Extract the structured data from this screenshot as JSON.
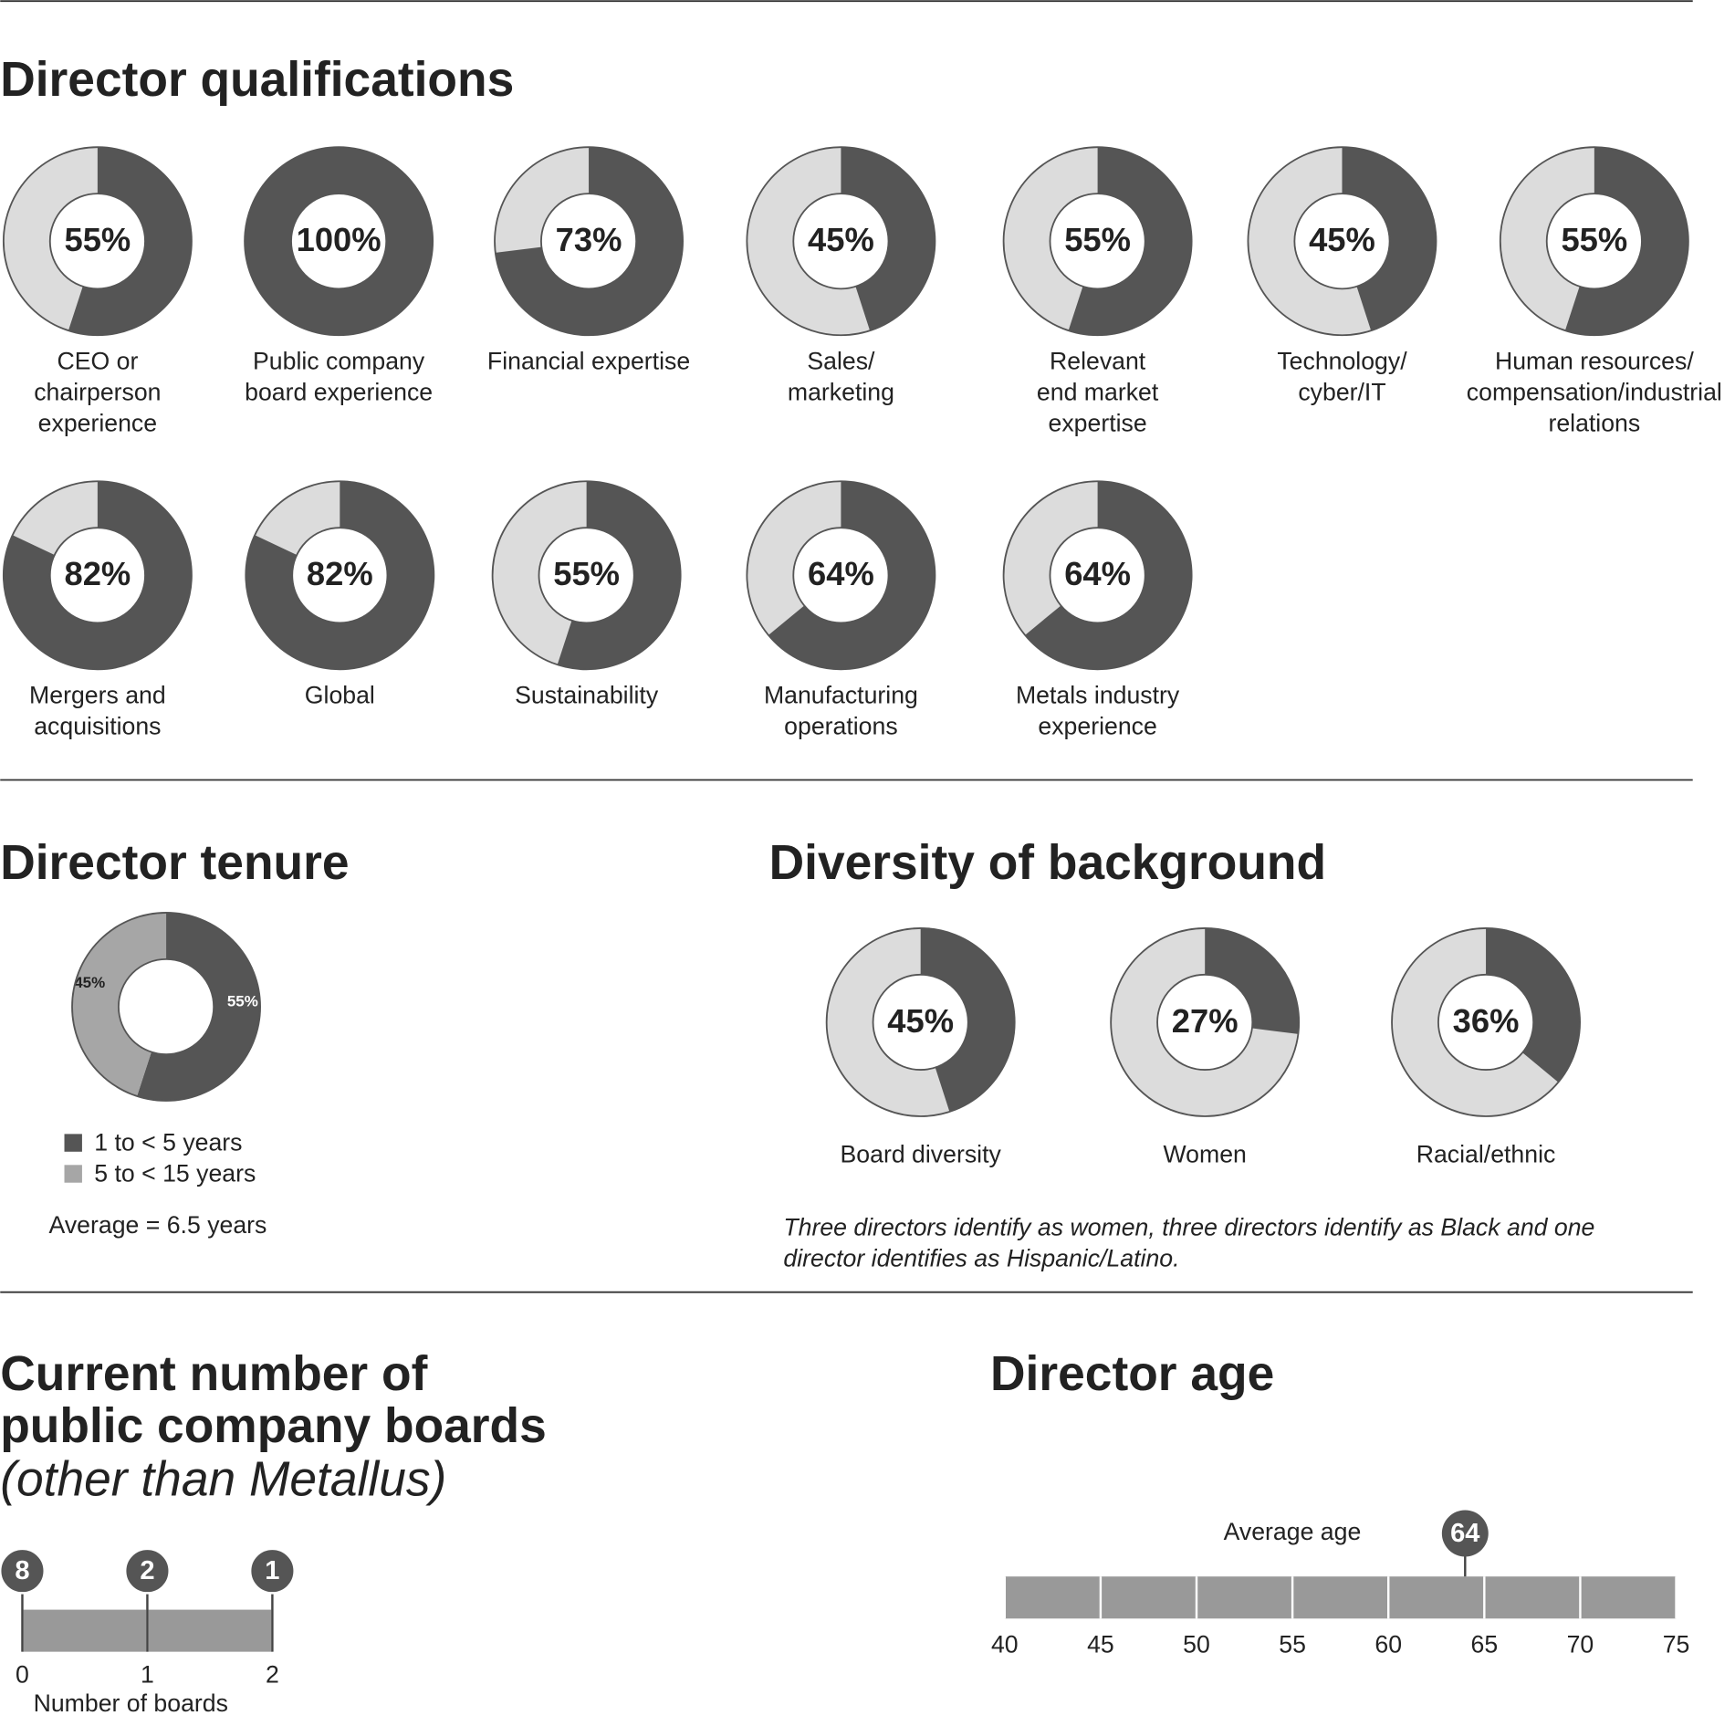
{
  "chart_data": [
    {
      "type": "donut-grid",
      "title": "Director qualifications",
      "categories": [
        [
          "CEO or",
          "chairperson",
          "experience"
        ],
        [
          "Public company",
          "board experience"
        ],
        [
          "Financial expertise"
        ],
        [
          "Sales/",
          "marketing"
        ],
        [
          "Relevant",
          "end market",
          "expertise"
        ],
        [
          "Technology/",
          "cyber/IT"
        ],
        [
          "Human resources/",
          "compensation/industrial",
          "relations"
        ],
        [
          "Mergers and",
          "acquisitions"
        ],
        [
          "Global"
        ],
        [
          "Sustainability"
        ],
        [
          "Manufacturing",
          "operations"
        ],
        [
          "Metals industry",
          "experience"
        ]
      ],
      "values": [
        55,
        100,
        73,
        45,
        55,
        45,
        55,
        82,
        82,
        55,
        64,
        64
      ],
      "value_labels": [
        "55%",
        "100%",
        "73%",
        "45%",
        "55%",
        "45%",
        "55%",
        "82%",
        "82%",
        "55%",
        "64%",
        "64%"
      ],
      "color": "#555555",
      "track_color": "#dcdcdc"
    },
    {
      "type": "donut",
      "title": "Director tenure",
      "categories": [
        "1 to < 5 years",
        "5 to < 15 years"
      ],
      "values": [
        55,
        45
      ],
      "value_labels": [
        "55%",
        "45%"
      ],
      "colors": [
        "#555555",
        "#a6a6a6"
      ],
      "note": "Average = 6.5 years"
    },
    {
      "type": "donut-grid",
      "title": "Diversity of background",
      "categories": [
        [
          "Board diversity"
        ],
        [
          "Women"
        ],
        [
          "Racial/ethnic"
        ]
      ],
      "values": [
        45,
        27,
        36
      ],
      "value_labels": [
        "45%",
        "27%",
        "36%"
      ],
      "color": "#555555",
      "track_color": "#dcdcdc",
      "note": [
        "Three directors identify as women, three directors identify as Black and one",
        "director identifies as Hispanic/Latino."
      ]
    },
    {
      "type": "dot-line",
      "title": [
        "Current number of",
        "public company boards"
      ],
      "subtitle": "(other than Metallus)",
      "x": [
        0,
        1,
        2
      ],
      "values": [
        8,
        2,
        1
      ],
      "xlim": [
        0,
        2
      ],
      "xticks": [
        0,
        1,
        2
      ],
      "xlabel": "Number of boards",
      "color": "#999999"
    },
    {
      "type": "marker-line",
      "title": "Director age",
      "annotation": "Average age",
      "value": 64,
      "xlim": [
        40,
        75
      ],
      "xticks": [
        40,
        45,
        50,
        55,
        60,
        65,
        70,
        75
      ],
      "color": "#999999"
    }
  ]
}
